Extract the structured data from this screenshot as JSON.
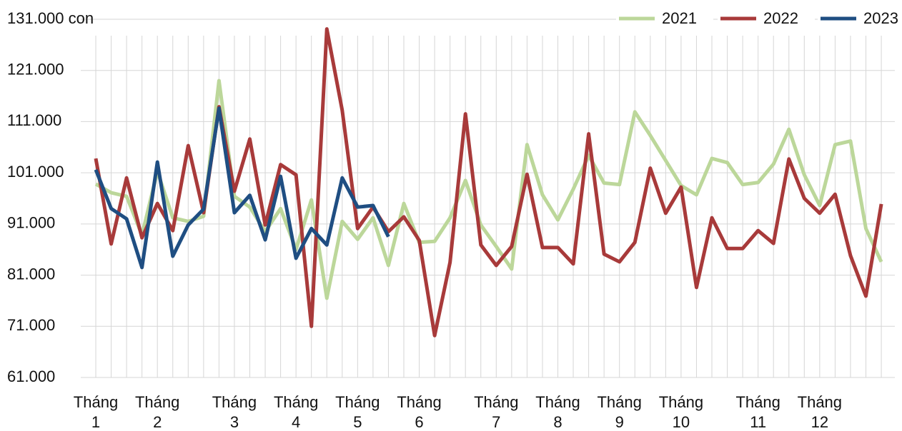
{
  "chart_data": {
    "type": "line",
    "categories": [
      "Tháng 1",
      null,
      null,
      null,
      "Tháng 2",
      null,
      null,
      null,
      null,
      "Tháng 3",
      null,
      null,
      null,
      "Tháng 4",
      null,
      null,
      null,
      "Tháng 5",
      null,
      null,
      null,
      "Tháng 6",
      null,
      null,
      null,
      null,
      "Tháng 7",
      null,
      null,
      null,
      "Tháng 8",
      null,
      null,
      null,
      "Tháng 9",
      null,
      null,
      null,
      "Tháng 10",
      null,
      null,
      null,
      null,
      "Tháng 11",
      null,
      null,
      null,
      "Tháng 12",
      null,
      null,
      null,
      null
    ],
    "series": [
      {
        "name": "2021",
        "color": "#bcd79a",
        "values": [
          98800,
          97100,
          96400,
          88800,
          101300,
          92200,
          91500,
          92500,
          119000,
          96400,
          94300,
          89500,
          94000,
          86000,
          95700,
          76500,
          91500,
          88000,
          92200,
          82900,
          95000,
          87400,
          87600,
          92200,
          99500,
          90800,
          86600,
          82200,
          106500,
          96700,
          91800,
          97800,
          104400,
          99000,
          98700,
          112900,
          108300,
          103400,
          98500,
          96700,
          103800,
          103000,
          98700,
          99100,
          102700,
          109500,
          100600,
          94600,
          106500,
          107200,
          90100,
          83600
        ]
      },
      {
        "name": "2022",
        "color": "#a83a3a",
        "values": [
          103800,
          87100,
          100000,
          88300,
          95000,
          89700,
          106300,
          93200,
          113900,
          97400,
          107600,
          90800,
          102600,
          100600,
          71000,
          129100,
          113200,
          90100,
          94300,
          89500,
          92400,
          87800,
          69200,
          83500,
          112500,
          86900,
          82900,
          86600,
          100700,
          86400,
          86400,
          83200,
          108600,
          85100,
          83600,
          87400,
          101900,
          93100,
          98200,
          78600,
          92200,
          86200,
          86200,
          89700,
          87200,
          103700,
          96000,
          93100,
          96800,
          84800,
          76900,
          94900
        ]
      },
      {
        "name": "2023",
        "color": "#1f4e82",
        "values": [
          101600,
          94000,
          92000,
          82500,
          103100,
          84700,
          90800,
          93900,
          113600,
          93200,
          96600,
          87900,
          100300,
          84300,
          90100,
          86900,
          100000,
          94300,
          94600,
          88500,
          null,
          null,
          null,
          null,
          null,
          null,
          null,
          null,
          null,
          null,
          null,
          null,
          null,
          null,
          null,
          null,
          null,
          null,
          null,
          null,
          null,
          null,
          null,
          null,
          null,
          null,
          null,
          null,
          null,
          null,
          null,
          null
        ]
      }
    ],
    "ylim": [
      61000,
      131000
    ],
    "yticks": [
      {
        "value": 61000,
        "label": "61.000"
      },
      {
        "value": 71000,
        "label": "71.000"
      },
      {
        "value": 81000,
        "label": "81.000"
      },
      {
        "value": 91000,
        "label": "91.000"
      },
      {
        "value": 101000,
        "label": "101.000"
      },
      {
        "value": 111000,
        "label": "111.000"
      },
      {
        "value": 121000,
        "label": "121.000"
      },
      {
        "value": 131000,
        "label": "131.000 con"
      }
    ],
    "grid": true,
    "legend": "top-right"
  }
}
